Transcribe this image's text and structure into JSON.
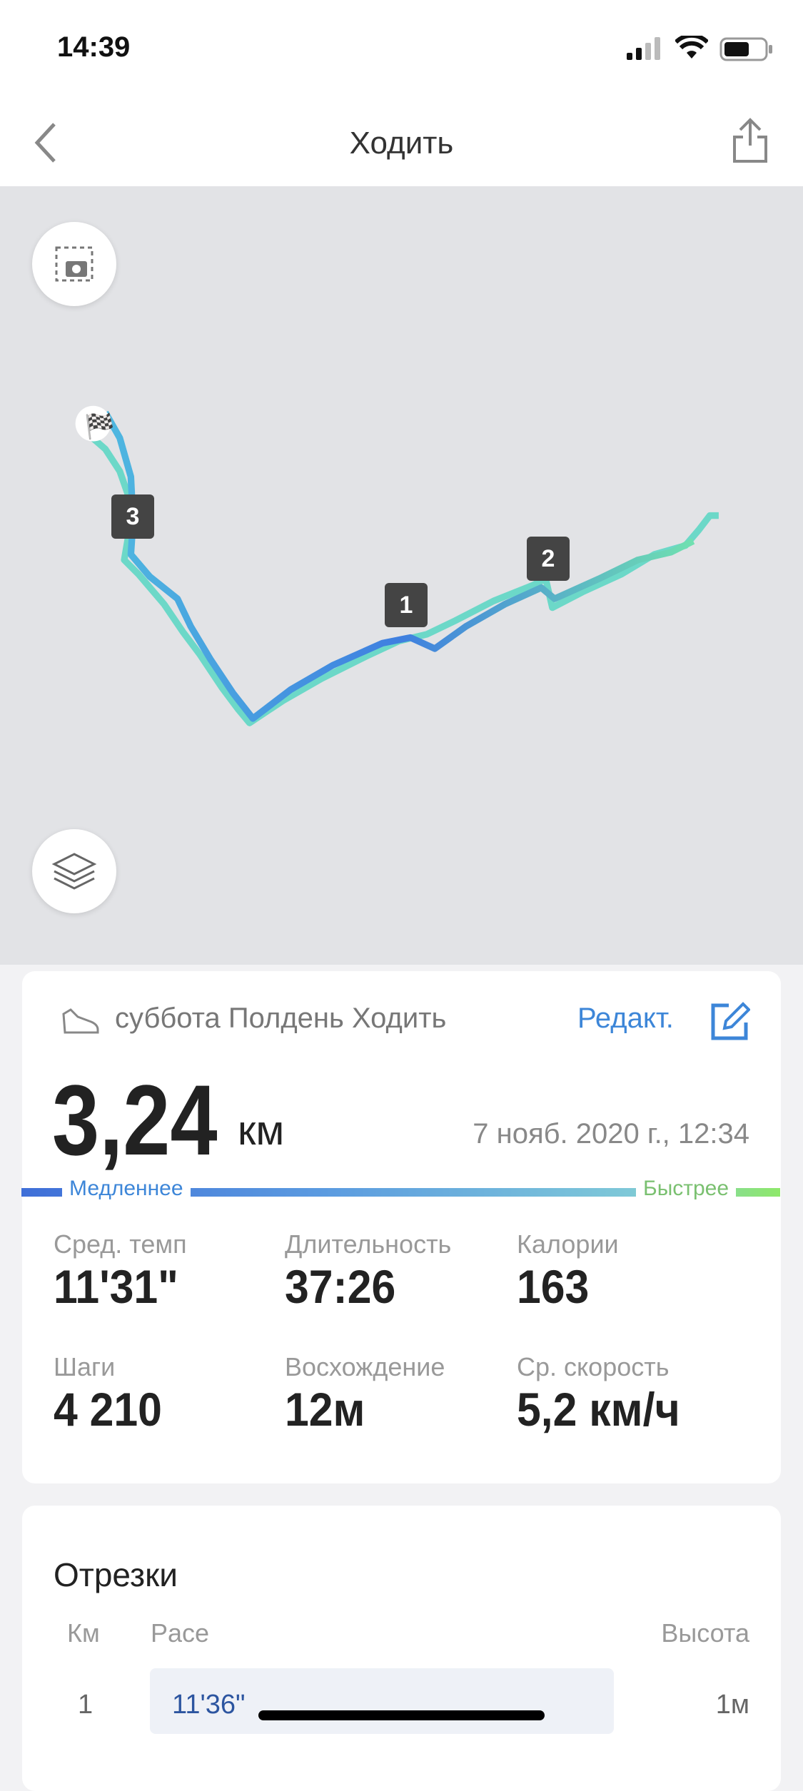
{
  "status_bar": {
    "time": "14:39"
  },
  "header": {
    "title": "Ходить",
    "back_icon": "chevron-left-icon",
    "share_icon": "share-icon"
  },
  "map": {
    "screenshot_icon": "camera-screenshot-icon",
    "layers_icon": "layers-icon",
    "markers": [
      "1",
      "2",
      "3"
    ],
    "finish_icon": "checkered-flag-icon"
  },
  "summary": {
    "activity_title": "суббота Полдень Ходить",
    "edit_label": "Редакт.",
    "distance": "3,24",
    "distance_unit": "км",
    "datetime": "7 нояб. 2020 г., 12:34",
    "slower_label": "Медленнее",
    "faster_label": "Быстрее",
    "colors": {
      "slow": "#3f6fd8",
      "fast": "#8ee86a",
      "accent": "#3d86d8"
    },
    "stats": [
      {
        "label": "Сред. темп",
        "value": "11'31\""
      },
      {
        "label": "Длительность",
        "value": "37:26"
      },
      {
        "label": "Калории",
        "value": "163"
      },
      {
        "label": "Шаги",
        "value": "4 210"
      },
      {
        "label": "Восхождение",
        "value": "12м"
      },
      {
        "label": "Ср. скорость",
        "value": "5,2 км/ч"
      }
    ]
  },
  "splits": {
    "title": "Отрезки",
    "columns": [
      "Км",
      "Pace",
      "Высота"
    ],
    "rows": [
      {
        "km": "1",
        "pace": "11'36\"",
        "elevation": "1м"
      }
    ]
  }
}
